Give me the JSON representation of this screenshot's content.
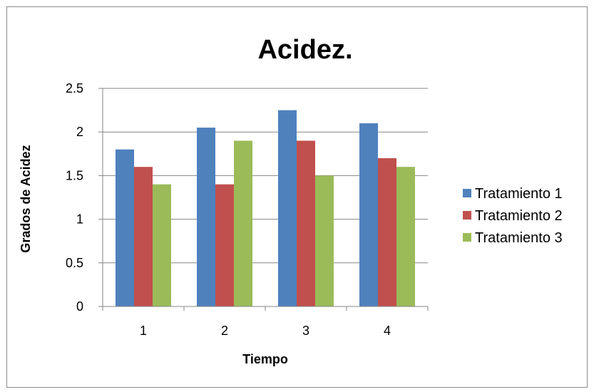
{
  "chart_data": {
    "type": "bar",
    "title": "Acidez.",
    "xlabel": "Tiempo",
    "ylabel": "Grados de Acidez",
    "categories": [
      "1",
      "2",
      "3",
      "4"
    ],
    "series": [
      {
        "name": "Tratamiento 1",
        "color": "#4f81bd",
        "values": [
          1.8,
          2.05,
          2.25,
          2.1
        ]
      },
      {
        "name": "Tratamiento 2",
        "color": "#c0504d",
        "values": [
          1.6,
          1.4,
          1.9,
          1.7
        ]
      },
      {
        "name": "Tratamiento 3",
        "color": "#9bbb59",
        "values": [
          1.4,
          1.9,
          1.5,
          1.6
        ]
      }
    ],
    "ylim": [
      0,
      2.5
    ],
    "yticks": [
      0,
      0.5,
      1,
      1.5,
      2,
      2.5
    ],
    "ytick_labels": [
      "0",
      "0.5",
      "1",
      "1.5",
      "2",
      "2.5"
    ],
    "grid": true,
    "legend_position": "right"
  }
}
